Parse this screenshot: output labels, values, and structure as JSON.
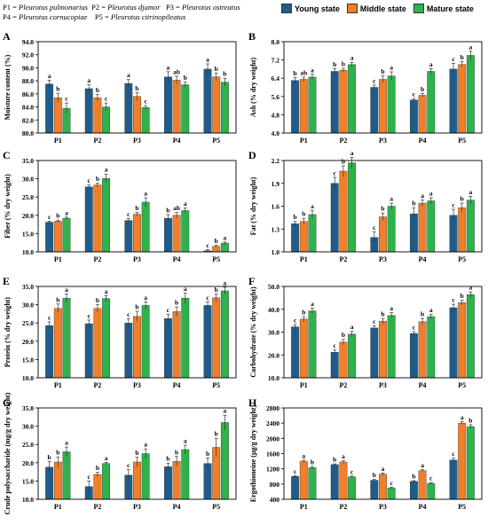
{
  "header": {
    "species": [
      {
        "code": "P1 = ",
        "name": "Pleurotus pulmonarius"
      },
      {
        "code": "P2 = ",
        "name": "Pleurotus djamor"
      },
      {
        "code": "P3 = ",
        "name": "Pleurotus ostreatus"
      },
      {
        "code": "P4 = ",
        "name": "Pleurotus  cornucopiae"
      },
      {
        "code": "P5 = ",
        "name": "Pleurotus citrinopileatus"
      }
    ]
  },
  "legend": [
    {
      "label": "Young state",
      "color": "#1f5c8a"
    },
    {
      "label": "Middle state",
      "color": "#f07f2a"
    },
    {
      "label": "Mature state",
      "color": "#2eb34a"
    }
  ],
  "chart_data": [
    {
      "type": "bar",
      "panel": "A",
      "ylabel": "Moisture content (%)",
      "ylim": [
        80,
        94
      ],
      "step": 2,
      "decimals": 1,
      "categories": [
        "P1",
        "P2",
        "P3",
        "P4",
        "P5"
      ],
      "series": [
        {
          "values": [
            87.5,
            86.8,
            87.6,
            88.6,
            89.8
          ],
          "err": [
            0.6,
            0.6,
            0.6,
            0.8,
            0.8
          ],
          "letters": [
            "a",
            "a",
            "a",
            "a",
            "a"
          ]
        },
        {
          "values": [
            85.4,
            85.4,
            85.6,
            88.1,
            88.6
          ],
          "err": [
            0.7,
            0.5,
            0.6,
            0.6,
            0.6
          ],
          "letters": [
            "b",
            "b",
            "b",
            "ab",
            "b"
          ]
        },
        {
          "values": [
            83.8,
            84.0,
            83.9,
            87.4,
            87.8
          ],
          "err": [
            0.8,
            0.6,
            0.3,
            0.4,
            0.6
          ],
          "letters": [
            "c",
            "c",
            "c",
            "b",
            "b"
          ]
        }
      ]
    },
    {
      "type": "bar",
      "panel": "B",
      "ylabel": "Ash (% dry weight)",
      "ylim": [
        4,
        8
      ],
      "step": 0.8,
      "decimals": 1,
      "categories": [
        "P1",
        "P2",
        "P3",
        "P4",
        "P5"
      ],
      "series": [
        {
          "values": [
            6.3,
            6.7,
            6.0,
            5.45,
            6.8
          ],
          "err": [
            0.12,
            0.12,
            0.1,
            0.06,
            0.25
          ],
          "letters": [
            "b",
            "b",
            "c",
            "c",
            "c"
          ]
        },
        {
          "values": [
            6.35,
            6.75,
            6.35,
            5.65,
            7.0
          ],
          "err": [
            0.1,
            0.08,
            0.15,
            0.08,
            0.12
          ],
          "letters": [
            "ab",
            "b",
            "b",
            "b",
            "b"
          ]
        },
        {
          "values": [
            6.45,
            7.0,
            6.5,
            6.7,
            7.4
          ],
          "err": [
            0.12,
            0.1,
            0.18,
            0.12,
            0.18
          ],
          "letters": [
            "a",
            "a",
            "a",
            "a",
            "a"
          ]
        }
      ]
    },
    {
      "type": "bar",
      "panel": "C",
      "ylabel": "Fiber (% dry weight)",
      "ylim": [
        10,
        35
      ],
      "step": 5,
      "decimals": 1,
      "categories": [
        "P1",
        "P2",
        "P3",
        "P4",
        "P5"
      ],
      "series": [
        {
          "values": [
            18.1,
            27.8,
            18.6,
            19.2,
            10.3
          ],
          "err": [
            0.3,
            0.5,
            0.5,
            1.0,
            0.3
          ],
          "letters": [
            "c",
            "c",
            "c",
            "b",
            "c"
          ]
        },
        {
          "values": [
            18.4,
            28.3,
            20.3,
            20.0,
            11.5
          ],
          "err": [
            0.3,
            0.5,
            0.5,
            0.8,
            0.3
          ],
          "letters": [
            "b",
            "b",
            "b",
            "ab",
            "b"
          ]
        },
        {
          "values": [
            19.2,
            30.1,
            23.6,
            21.3,
            12.4
          ],
          "err": [
            0.3,
            1.2,
            1.2,
            0.7,
            0.3
          ],
          "letters": [
            "a",
            "a",
            "a",
            "a",
            "a"
          ]
        }
      ]
    },
    {
      "type": "bar",
      "panel": "D",
      "ylabel": "Fat (% dry weight)",
      "ylim": [
        1,
        2.2
      ],
      "step": 0.3,
      "decimals": 1,
      "categories": [
        "P1",
        "P2",
        "P3",
        "P4",
        "P5"
      ],
      "series": [
        {
          "values": [
            1.37,
            1.9,
            1.19,
            1.5,
            1.48
          ],
          "err": [
            0.03,
            0.08,
            0.07,
            0.08,
            0.08
          ],
          "letters": [
            "b",
            "c",
            "c",
            "b",
            "c"
          ]
        },
        {
          "values": [
            1.4,
            2.06,
            1.46,
            1.64,
            1.58
          ],
          "err": [
            0.04,
            0.07,
            0.05,
            0.04,
            0.06
          ],
          "letters": [
            "b",
            "b",
            "b",
            "a",
            "b"
          ]
        },
        {
          "values": [
            1.49,
            2.17,
            1.6,
            1.67,
            1.68
          ],
          "err": [
            0.05,
            0.07,
            0.04,
            0.04,
            0.05
          ],
          "letters": [
            "a",
            "a",
            "a",
            "a",
            "a"
          ]
        }
      ]
    },
    {
      "type": "bar",
      "panel": "E",
      "ylabel": "Protein (% dry weight)",
      "ylim": [
        10,
        35
      ],
      "step": 5,
      "decimals": 1,
      "categories": [
        "P1",
        "P2",
        "P3",
        "P4",
        "P5"
      ],
      "series": [
        {
          "values": [
            24.3,
            24.8,
            25.0,
            26.2,
            29.8
          ],
          "err": [
            1.0,
            1.0,
            1.2,
            1.2,
            1.0
          ],
          "letters": [
            "c",
            "c",
            "c",
            "c",
            "c"
          ]
        },
        {
          "values": [
            29.0,
            29.0,
            26.8,
            28.1,
            31.9
          ],
          "err": [
            1.2,
            1.0,
            1.4,
            1.3,
            1.0
          ],
          "letters": [
            "b",
            "b",
            "b",
            "b",
            "b"
          ]
        },
        {
          "values": [
            31.8,
            31.7,
            29.8,
            31.8,
            33.8
          ],
          "err": [
            1.1,
            0.8,
            1.0,
            1.4,
            1.0
          ],
          "letters": [
            "a",
            "a",
            "a",
            "a",
            "a"
          ]
        }
      ]
    },
    {
      "type": "bar",
      "panel": "F",
      "ylabel": "Carbohydrate (% dry weight)",
      "ylim": [
        10,
        50
      ],
      "step": 10,
      "decimals": 1,
      "categories": [
        "P1",
        "P2",
        "P3",
        "P4",
        "P5"
      ],
      "series": [
        {
          "values": [
            32.3,
            21.2,
            31.8,
            29.4,
            40.7
          ],
          "err": [
            1.0,
            1.0,
            1.0,
            0.8,
            1.5
          ],
          "letters": [
            "c",
            "c",
            "c",
            "c",
            "c"
          ]
        },
        {
          "values": [
            35.7,
            25.6,
            34.8,
            34.6,
            42.9
          ],
          "err": [
            1.1,
            1.2,
            1.2,
            1.4,
            1.0
          ],
          "letters": [
            "b",
            "b",
            "b",
            "b",
            "b"
          ]
        },
        {
          "values": [
            39.3,
            29.1,
            37.3,
            36.8,
            46.4
          ],
          "err": [
            1.2,
            1.2,
            1.2,
            1.0,
            1.2
          ],
          "letters": [
            "a",
            "a",
            "a",
            "a",
            "a"
          ]
        }
      ]
    },
    {
      "type": "bar",
      "panel": "G",
      "ylabel": "Crude polysaccharide (mg/g dry weight)",
      "ylim": [
        10,
        35
      ],
      "step": 5,
      "decimals": 1,
      "categories": [
        "P1",
        "P2",
        "P3",
        "P4",
        "P5"
      ],
      "series": [
        {
          "values": [
            18.8,
            13.5,
            16.6,
            18.9,
            19.8
          ],
          "err": [
            1.5,
            1.5,
            1.5,
            1.0,
            1.5
          ],
          "letters": [
            "b",
            "c",
            "c",
            "b",
            "b"
          ]
        },
        {
          "values": [
            20.2,
            16.8,
            20.2,
            20.4,
            24.2
          ],
          "err": [
            1.4,
            0.6,
            1.3,
            1.3,
            2.5
          ],
          "letters": [
            "b",
            "b",
            "b",
            "b",
            "b"
          ]
        },
        {
          "values": [
            23.0,
            19.8,
            22.5,
            23.6,
            31.0
          ],
          "err": [
            1.3,
            0.3,
            1.3,
            1.2,
            2.0
          ],
          "letters": [
            "a",
            "a",
            "a",
            "a",
            "a"
          ]
        }
      ]
    },
    {
      "type": "bar",
      "panel": "H",
      "ylabel": "Ergothioneine (µg/g dry weight)",
      "ylim": [
        400,
        2800
      ],
      "step": 400,
      "decimals": 0,
      "categories": [
        "P1",
        "P2",
        "P3",
        "P4",
        "P5"
      ],
      "series": [
        {
          "values": [
            1000,
            1310,
            900,
            870,
            1430
          ],
          "err": [
            20,
            20,
            30,
            20,
            50
          ],
          "letters": [
            "c",
            "b",
            "b",
            "b",
            "c"
          ]
        },
        {
          "values": [
            1400,
            1380,
            1060,
            1150,
            2400
          ],
          "err": [
            30,
            30,
            30,
            30,
            40
          ],
          "letters": [
            "a",
            "a",
            "a",
            "a",
            "a"
          ]
        },
        {
          "values": [
            1230,
            990,
            700,
            820,
            2310
          ],
          "err": [
            30,
            20,
            20,
            20,
            50
          ],
          "letters": [
            "b",
            "c",
            "c",
            "c",
            "b"
          ]
        }
      ]
    }
  ]
}
